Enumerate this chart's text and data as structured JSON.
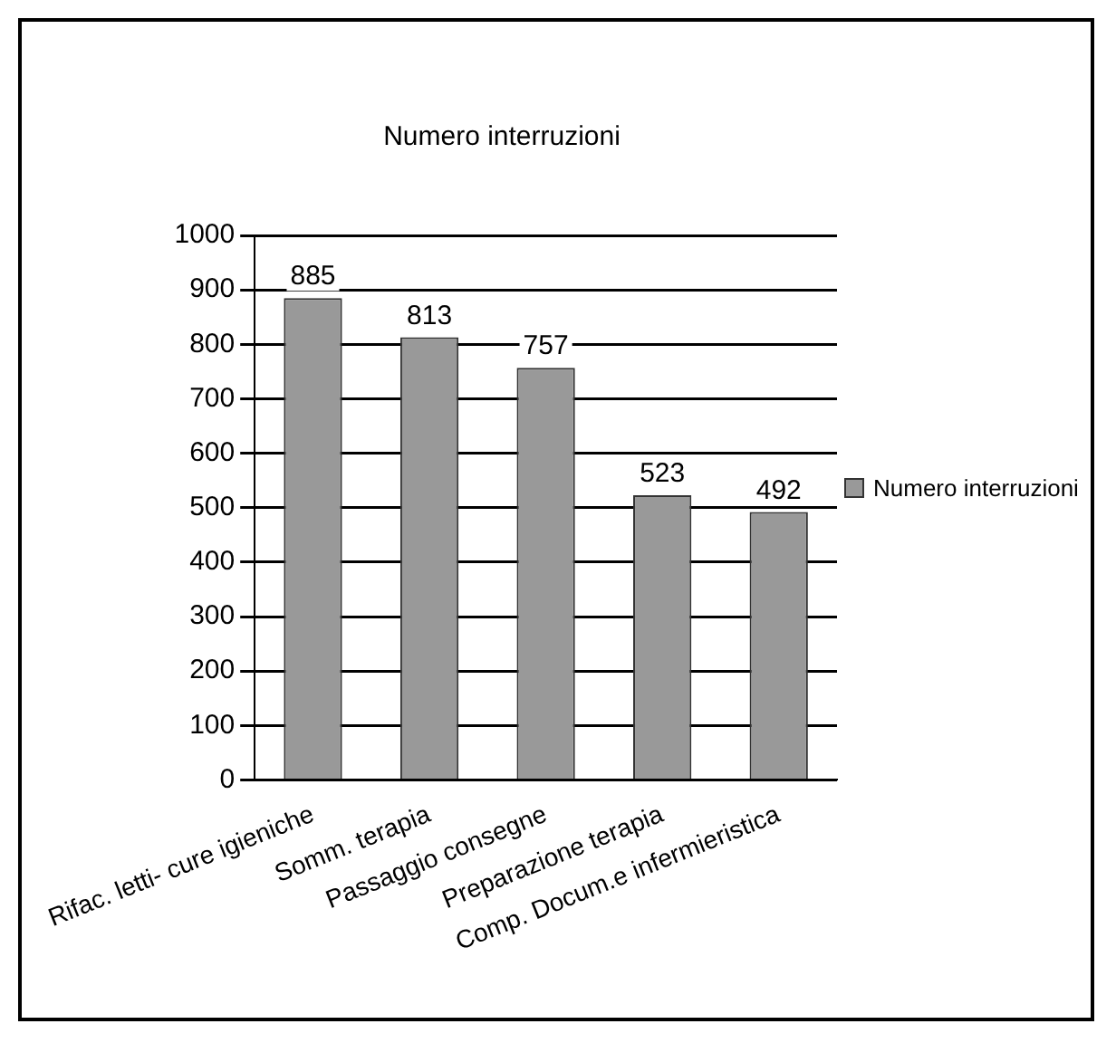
{
  "chart_data": {
    "type": "bar",
    "title": "Numero interruzioni",
    "categories": [
      "Rifac. letti- cure igieniche",
      "Somm. terapia",
      "Passaggio consegne",
      "Preparazione terapia",
      "Comp. Docum.e infermieristica"
    ],
    "series": [
      {
        "name": "Numero interruzioni",
        "color": "#999999",
        "values": [
          885,
          813,
          757,
          523,
          492
        ]
      }
    ],
    "ylim": [
      0,
      1000
    ],
    "yticks": [
      0,
      100,
      200,
      300,
      400,
      500,
      600,
      700,
      800,
      900,
      1000
    ],
    "grid": "y",
    "legend": "right",
    "data_labels": true
  }
}
